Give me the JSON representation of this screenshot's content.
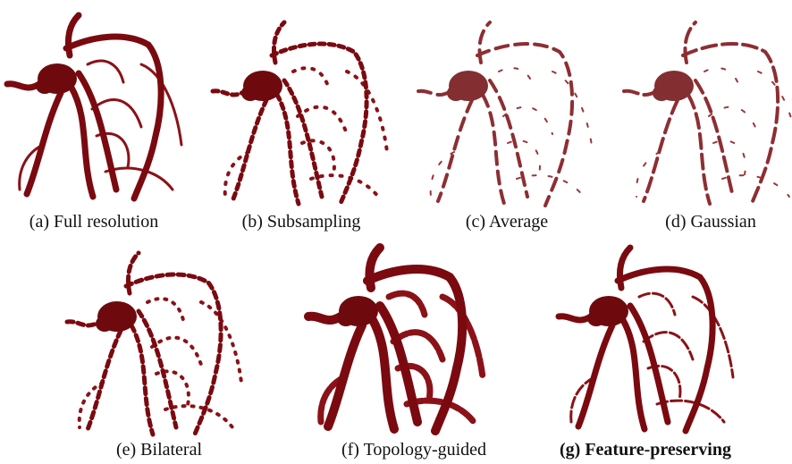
{
  "figure": {
    "panels": [
      {
        "caption": "(a) Full resolution"
      },
      {
        "caption": "(b) Subsampling"
      },
      {
        "caption": "(c) Average"
      },
      {
        "caption": "(d) Gaussian"
      },
      {
        "caption": "(e) Bilateral"
      },
      {
        "caption": "(f) Topology-guided"
      },
      {
        "caption": "(g) Feature-preserving"
      }
    ]
  }
}
